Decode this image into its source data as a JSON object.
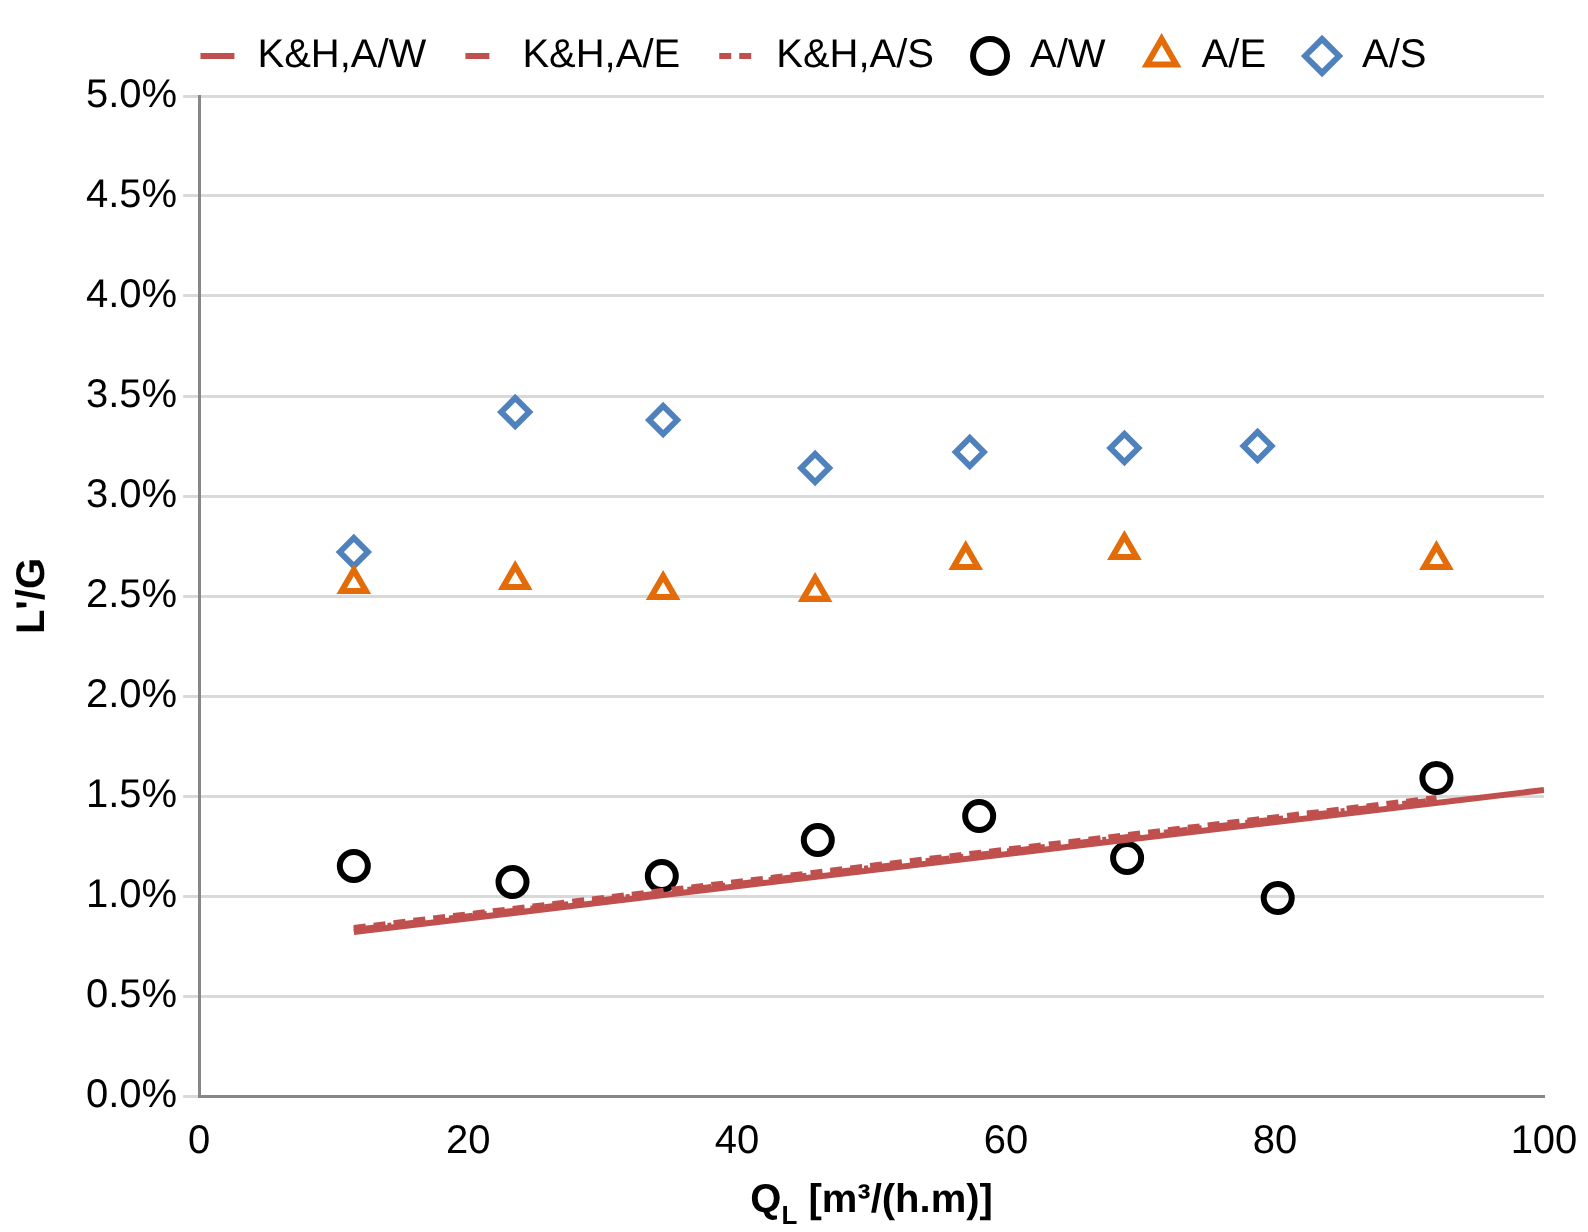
{
  "chart_data": {
    "type": "scatter",
    "xlabel": "Q$_{L}$ [m³/(h.m)]",
    "ylabel": "L'/G",
    "xlim": [
      0,
      100
    ],
    "xticks": [
      0,
      20,
      40,
      60,
      80,
      100
    ],
    "ylim": [
      0,
      5
    ],
    "yticks": [
      {
        "value": 0,
        "label": "0.0%"
      },
      {
        "value": 0.5,
        "label": "0.5%"
      },
      {
        "value": 1,
        "label": "1.0%"
      },
      {
        "value": 1.5,
        "label": "1.5%"
      },
      {
        "value": 2,
        "label": "2.0%"
      },
      {
        "value": 2.5,
        "label": "2.5%"
      },
      {
        "value": 3,
        "label": "3.0%"
      },
      {
        "value": 3.5,
        "label": "3.5%"
      },
      {
        "value": 4,
        "label": "4.0%"
      },
      {
        "value": 4.5,
        "label": "4.5%"
      },
      {
        "value": 5,
        "label": "5.0%"
      }
    ],
    "grid": "y",
    "legend": "top",
    "series": [
      {
        "name": "K&H,A/W",
        "type": "line",
        "color": "#c0504d",
        "line_style": "solid",
        "marker": "none",
        "x": [
          11.5,
          100
        ],
        "values": [
          0.82,
          1.53
        ]
      },
      {
        "name": "K&H,A/E",
        "type": "line",
        "color": "#c0504d",
        "line_style": "dashdot",
        "marker": "none",
        "x": [
          11.5,
          92
        ],
        "values": [
          0.83,
          1.48
        ]
      },
      {
        "name": "K&H,A/S",
        "type": "line",
        "color": "#c0504d",
        "line_style": "dashed",
        "marker": "none",
        "x": [
          11.5,
          92
        ],
        "values": [
          0.84,
          1.49
        ]
      },
      {
        "name": "A/W",
        "type": "scatter",
        "color": "#000000",
        "marker": "circle",
        "x": [
          11.5,
          23.3,
          34.4,
          46,
          58,
          69,
          80.2,
          92
        ],
        "values": [
          1.15,
          1.07,
          1.1,
          1.28,
          1.4,
          1.19,
          0.99,
          1.59
        ]
      },
      {
        "name": "A/E",
        "type": "scatter",
        "color": "#e36c09",
        "marker": "triangle",
        "x": [
          11.5,
          23.5,
          34.5,
          45.8,
          57,
          68.8,
          92
        ],
        "values": [
          2.56,
          2.58,
          2.53,
          2.52,
          2.68,
          2.73,
          2.68
        ]
      },
      {
        "name": "A/S",
        "type": "scatter",
        "color": "#4f81bd",
        "marker": "diamond",
        "x": [
          11.5,
          23.5,
          34.5,
          45.8,
          57.3,
          68.8,
          78.7
        ],
        "values": [
          2.72,
          3.42,
          3.38,
          3.14,
          3.22,
          3.24,
          3.25
        ]
      }
    ]
  }
}
